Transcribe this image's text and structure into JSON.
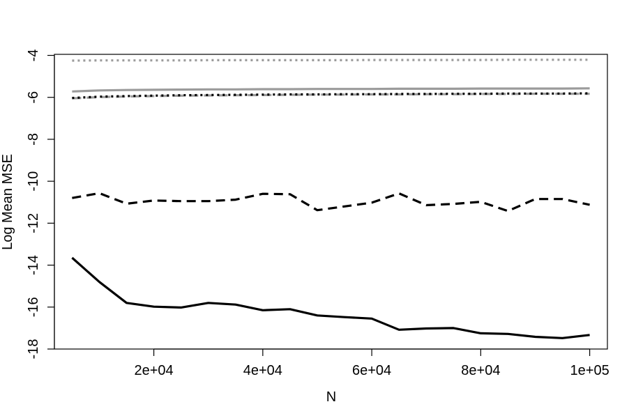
{
  "chart_data": {
    "type": "line",
    "title": "",
    "xlabel": "N",
    "ylabel": "Log Mean MSE",
    "xlim": [
      1750,
      103250
    ],
    "ylim": [
      -18,
      -3.95
    ],
    "xticks": [
      20000,
      40000,
      60000,
      80000,
      100000
    ],
    "xtick_labels": [
      "2e+04",
      "4e+04",
      "6e+04",
      "8e+04",
      "1e+05"
    ],
    "yticks": [
      -18,
      -16,
      -14,
      -12,
      -10,
      -8,
      -6,
      -4
    ],
    "ytick_labels": [
      "-18",
      "-16",
      "-14",
      "-12",
      "-10",
      "-8",
      "-6",
      "-4"
    ],
    "grid": false,
    "legend": "none",
    "x": [
      5000,
      10000,
      15000,
      20000,
      25000,
      30000,
      35000,
      40000,
      45000,
      50000,
      55000,
      60000,
      65000,
      70000,
      75000,
      80000,
      85000,
      90000,
      95000,
      100000
    ],
    "series": [
      {
        "color": "#9b9b9b",
        "style": "dotted",
        "values": [
          -4.25,
          -4.24,
          -4.24,
          -4.24,
          -4.24,
          -4.23,
          -4.23,
          -4.23,
          -4.23,
          -4.23,
          -4.23,
          -4.22,
          -4.22,
          -4.22,
          -4.22,
          -4.22,
          -4.21,
          -4.21,
          -4.21,
          -4.21
        ]
      },
      {
        "color": "#9b9b9b",
        "style": "solid",
        "values": [
          -5.72,
          -5.67,
          -5.65,
          -5.64,
          -5.63,
          -5.62,
          -5.62,
          -5.61,
          -5.61,
          -5.6,
          -5.6,
          -5.6,
          -5.59,
          -5.59,
          -5.59,
          -5.58,
          -5.58,
          -5.58,
          -5.58,
          -5.57
        ]
      },
      {
        "color": "#9b9b9b",
        "style": "dashed",
        "values": [
          -6.05,
          -5.99,
          -5.96,
          -5.94,
          -5.92,
          -5.91,
          -5.9,
          -5.89,
          -5.88,
          -5.87,
          -5.87,
          -5.86,
          -5.86,
          -5.85,
          -5.85,
          -5.84,
          -5.84,
          -5.83,
          -5.83,
          -5.83
        ]
      },
      {
        "color": "#000000",
        "style": "dotted",
        "values": [
          -6.03,
          -5.97,
          -5.94,
          -5.92,
          -5.9,
          -5.89,
          -5.88,
          -5.87,
          -5.86,
          -5.86,
          -5.85,
          -5.85,
          -5.84,
          -5.84,
          -5.83,
          -5.83,
          -5.82,
          -5.82,
          -5.82,
          -5.81
        ]
      },
      {
        "color": "#000000",
        "style": "dashed",
        "values": [
          -10.8,
          -10.57,
          -11.07,
          -10.92,
          -10.95,
          -10.95,
          -10.88,
          -10.6,
          -10.62,
          -11.38,
          -11.2,
          -11.02,
          -10.58,
          -11.14,
          -11.08,
          -10.98,
          -11.42,
          -10.85,
          -10.85,
          -11.12
        ]
      },
      {
        "color": "#000000",
        "style": "solid",
        "values": [
          -13.65,
          -14.8,
          -15.8,
          -15.98,
          -16.02,
          -15.8,
          -15.88,
          -16.15,
          -16.1,
          -16.4,
          -16.48,
          -16.55,
          -17.08,
          -17.02,
          -17.0,
          -17.25,
          -17.28,
          -17.42,
          -17.48,
          -17.33
        ]
      }
    ]
  }
}
